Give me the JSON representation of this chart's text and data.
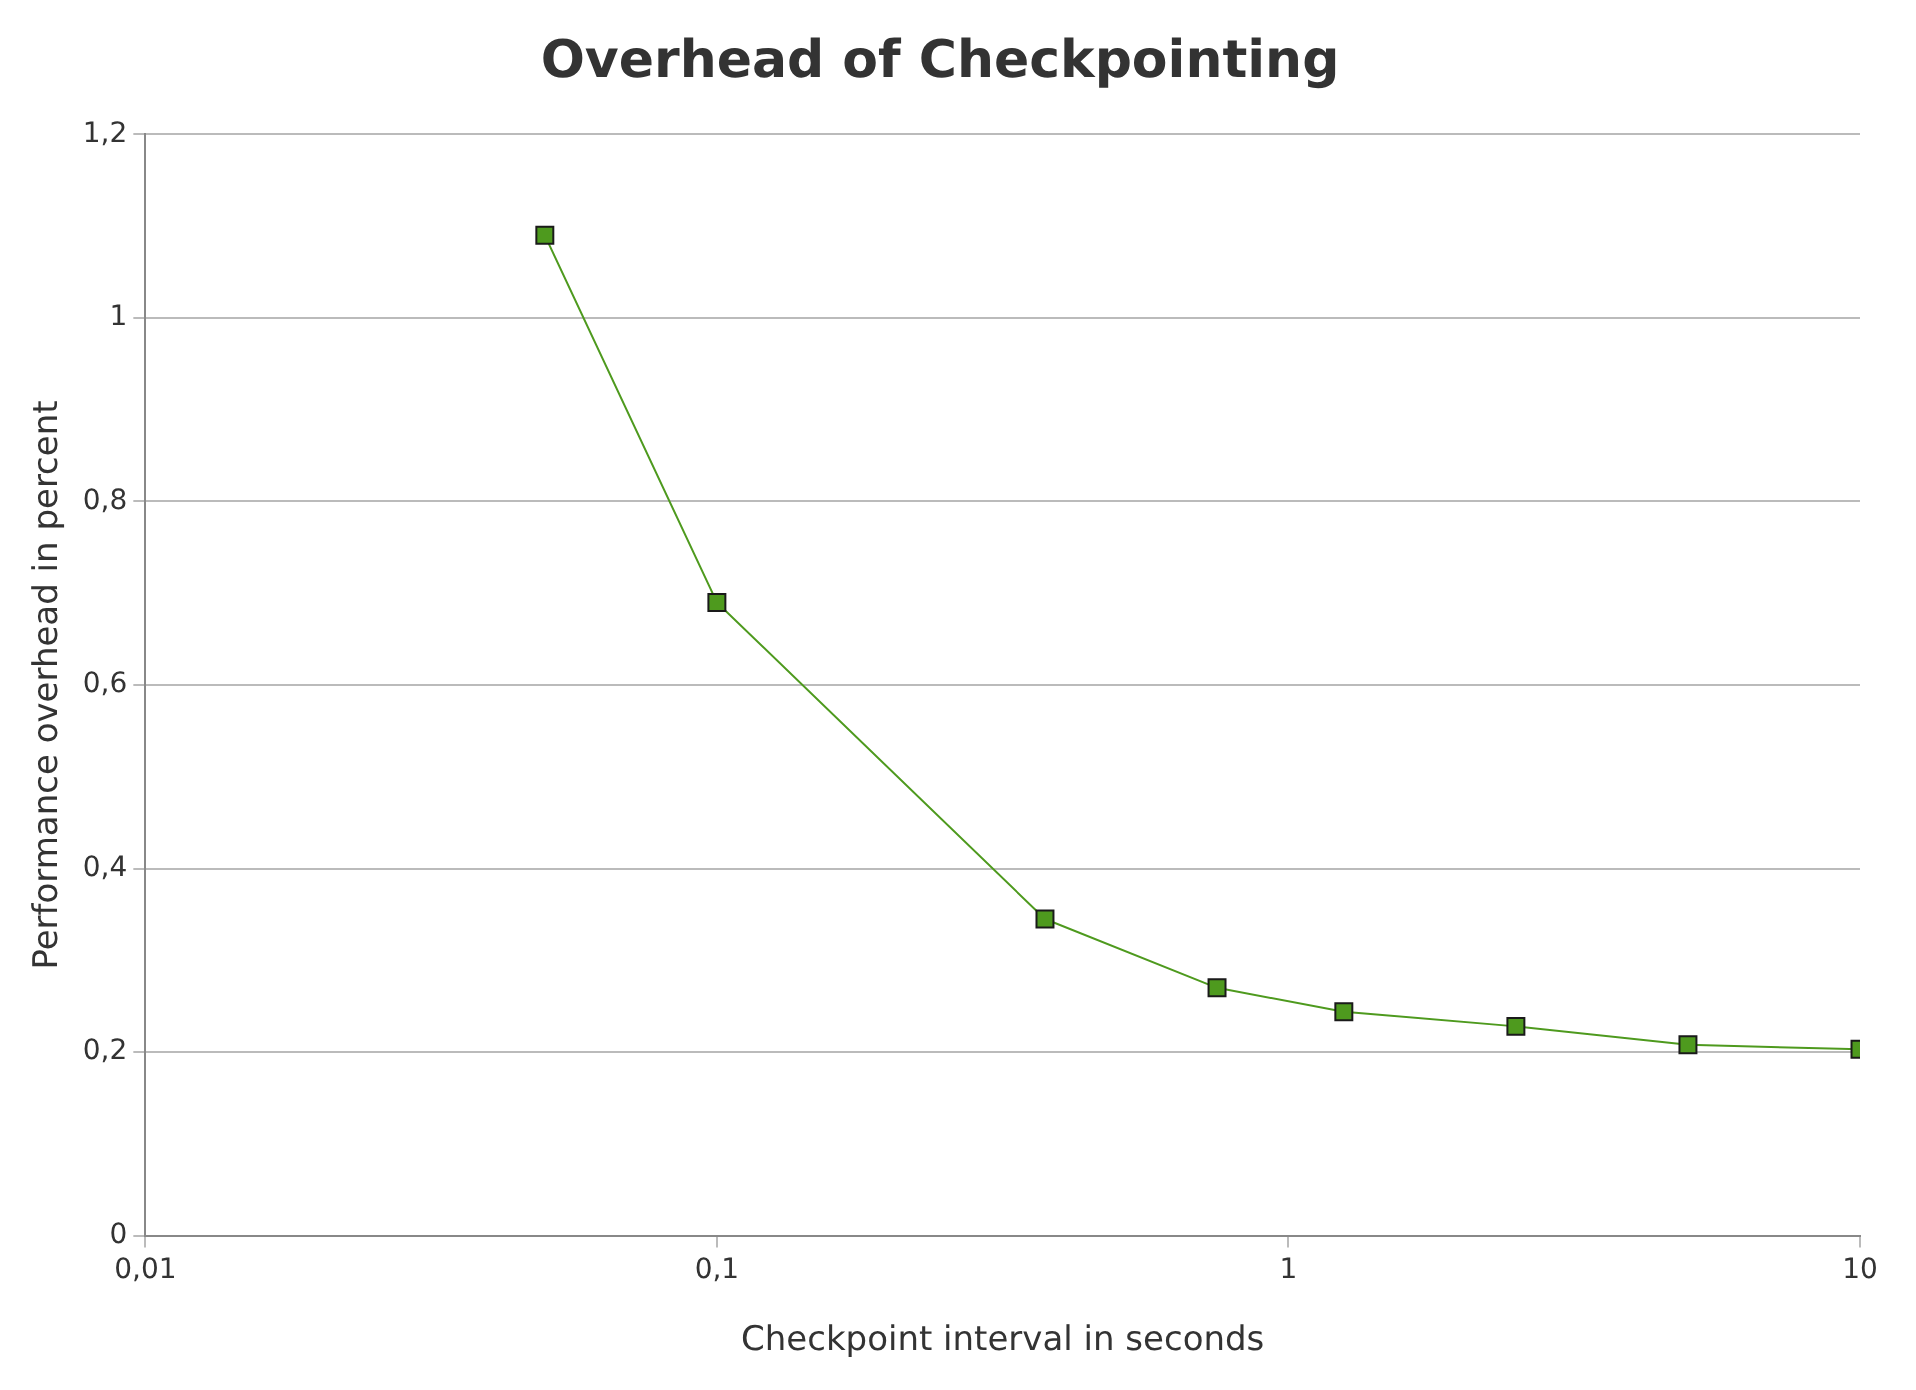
{
  "chart_data": {
    "type": "line",
    "title": "Overhead of Checkpointing",
    "xlabel": "Checkpoint interval in seconds",
    "ylabel": "Performance overhead in percent",
    "x": [
      0.05,
      0.1,
      0.375,
      0.75,
      1.25,
      2.5,
      5,
      10
    ],
    "series": [
      {
        "color": "#4e9a1e",
        "values": [
          1.09,
          0.69,
          0.345,
          0.27,
          0.244,
          0.228,
          0.208,
          0.203
        ]
      }
    ],
    "log": "x",
    "xlim": [
      0.01,
      10
    ],
    "xticks": [
      {
        "value": 0.01,
        "label": "0,01"
      },
      {
        "value": 0.1,
        "label": "0,1"
      },
      1,
      10
    ],
    "ylim": [
      0,
      1.2
    ],
    "yticks": [
      0,
      {
        "value": 0.2,
        "label": "0,2"
      },
      {
        "value": 0.4,
        "label": "0,4"
      },
      {
        "value": 0.6,
        "label": "0,6"
      },
      {
        "value": 0.8,
        "label": "0,8"
      },
      1,
      {
        "value": 1.2,
        "label": "1,2"
      }
    ],
    "grid": "y",
    "legend": false,
    "marker": "square",
    "line_style": "solid"
  }
}
